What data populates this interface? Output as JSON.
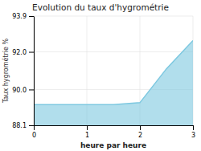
{
  "chart_data": {
    "type": "area",
    "title": "Evolution du taux d'hygrométrie",
    "x_label": "heure par heure",
    "y_label": "Taux hygrométrie %",
    "x": [
      0,
      0.5,
      1,
      1.5,
      2,
      2.5,
      3
    ],
    "values": [
      89.2,
      89.2,
      89.2,
      89.2,
      89.3,
      91.1,
      92.6
    ],
    "color": "#7dc8e0",
    "xlim": [
      0,
      3
    ],
    "ylim": [
      88.1,
      93.9
    ],
    "xticks": [
      0,
      1,
      2,
      3
    ],
    "yticks": [
      88.1,
      {
        "value": 90,
        "label": "90.0"
      },
      {
        "value": 92,
        "label": "92.0"
      },
      93.9
    ],
    "grid": true
  }
}
